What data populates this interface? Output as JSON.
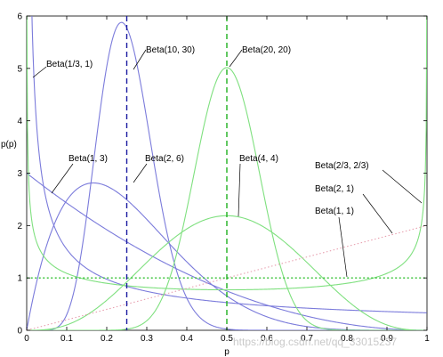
{
  "chart_data": {
    "type": "line",
    "title": "",
    "xlabel": "p",
    "ylabel": "p(p)",
    "xlim": [
      0,
      1
    ],
    "ylim": [
      0,
      6
    ],
    "xticks": [
      0,
      0.1,
      0.2,
      0.3,
      0.4,
      0.5,
      0.6,
      0.7,
      0.8,
      0.9,
      1
    ],
    "xtick_labels": [
      "0",
      "0.1",
      "0.2",
      "0.3",
      "0.4",
      "0.5",
      "0.6",
      "0.7",
      "0.8",
      "0.9",
      "1"
    ],
    "yticks": [
      0,
      1,
      2,
      3,
      4,
      5,
      6
    ],
    "ytick_labels": [
      "0",
      "1",
      "2",
      "3",
      "4",
      "5",
      "6"
    ],
    "grid": false,
    "legend": "none",
    "colors": {
      "blue": "#7b7bdb",
      "green": "#7fe07f",
      "pink": "#e8a0b0",
      "blue_ref": "#1a1aa0",
      "green_ref": "#20b020"
    },
    "series": [
      {
        "name": "Beta(1/3, 1)",
        "alpha": 0.3333,
        "beta": 1,
        "color": "blue"
      },
      {
        "name": "Beta(10, 30)",
        "alpha": 10,
        "beta": 30,
        "color": "blue"
      },
      {
        "name": "Beta(1, 3)",
        "alpha": 1,
        "beta": 3,
        "color": "blue"
      },
      {
        "name": "Beta(2, 6)",
        "alpha": 2,
        "beta": 6,
        "color": "blue"
      },
      {
        "name": "Beta(20, 20)",
        "alpha": 20,
        "beta": 20,
        "color": "green"
      },
      {
        "name": "Beta(4, 4)",
        "alpha": 4,
        "beta": 4,
        "color": "green"
      },
      {
        "name": "Beta(2/3, 2/3)",
        "alpha": 0.6667,
        "beta": 0.6667,
        "color": "green"
      },
      {
        "name": "Beta(2, 1)",
        "alpha": 2,
        "beta": 1,
        "color": "pink"
      },
      {
        "name": "Beta(1, 1)",
        "alpha": 1,
        "beta": 1,
        "color": "green"
      }
    ],
    "reference_lines": [
      {
        "orientation": "vertical",
        "x": 0.25,
        "color": "blue_ref",
        "style": "dashed"
      },
      {
        "orientation": "vertical",
        "x": 0.5,
        "color": "green_ref",
        "style": "dashed"
      }
    ]
  },
  "watermark": "https://blog.csdn.net/qq_33015237"
}
